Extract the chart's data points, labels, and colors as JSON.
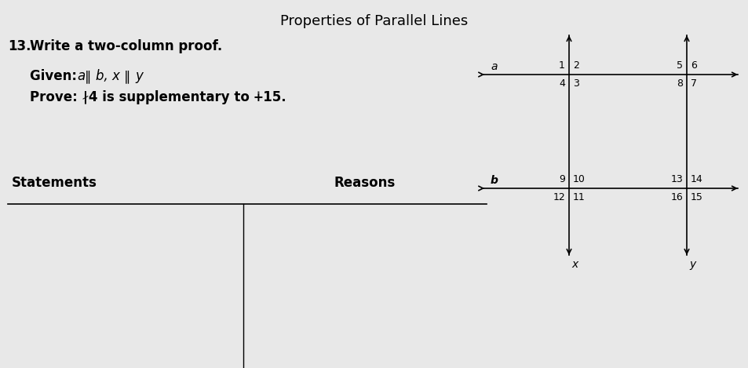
{
  "title": "Properties of Parallel Lines",
  "problem_number": "13.",
  "instruction": "Write a two-column proof.",
  "given": "Given: α ∥ b, x ∥ y",
  "prove": "Prove: ∤4 is supplementary to ∔15.",
  "col1_header": "Statements",
  "col2_header": "Reasons",
  "bg_color": "#e8e8e8",
  "text_color": "#000000",
  "title_fontsize": 13,
  "body_fontsize": 11,
  "header_fontsize": 12,
  "diagram": {
    "line_a_label": "a",
    "line_b_label": "b",
    "line_x_label": "x",
    "line_y_label": "y",
    "intersection1_numbers": [
      "1",
      "2",
      "4",
      "3"
    ],
    "intersection2_numbers": [
      "5",
      "6",
      "8",
      "7"
    ],
    "intersection3_numbers": [
      "9",
      "10",
      "12",
      "11"
    ],
    "intersection4_numbers": [
      "13",
      "14",
      "16",
      "15"
    ]
  }
}
